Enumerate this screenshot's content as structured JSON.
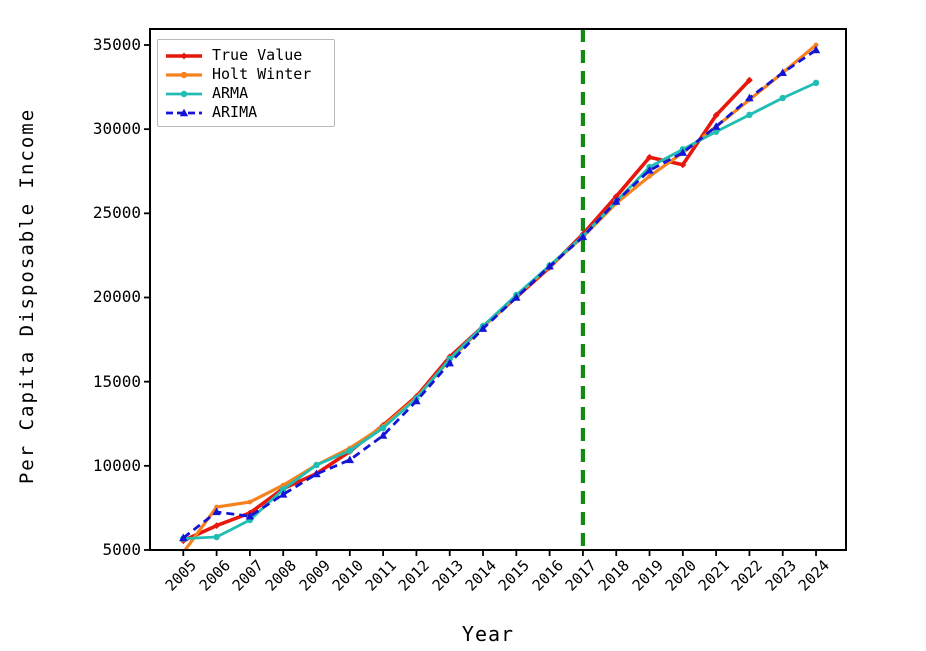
{
  "figure": {
    "background": "#ffffff",
    "axes_color": "#000000"
  },
  "chart_data": {
    "type": "line",
    "title": "",
    "xlabel": "Year",
    "ylabel": "Per Capita Disposable Income",
    "x": [
      2005,
      2006,
      2007,
      2008,
      2009,
      2010,
      2011,
      2012,
      2013,
      2014,
      2015,
      2016,
      2017,
      2018,
      2019,
      2020,
      2021,
      2022,
      2023,
      2024
    ],
    "xlim": [
      2004.0,
      2024.9
    ],
    "ylim": [
      5000,
      35950
    ],
    "yticks": [
      5000,
      10000,
      15000,
      20000,
      25000,
      30000,
      35000
    ],
    "grid": false,
    "legend_position": "upper-left",
    "series": [
      {
        "name": "True Value",
        "color": "#e8170d",
        "style": "solid",
        "marker": "diamond",
        "width": 3.6,
        "values": [
          5550,
          6450,
          7200,
          8650,
          9540,
          10850,
          12400,
          14120,
          16470,
          18280,
          20025,
          21790,
          23760,
          26000,
          28330,
          27880,
          30830,
          32910,
          null,
          null
        ]
      },
      {
        "name": "Holt Winter",
        "color": "#f5821f",
        "style": "solid",
        "marker": "circle-small",
        "width": 3.2,
        "values": [
          4850,
          7550,
          7850,
          8850,
          10050,
          11050,
          12350,
          14050,
          16300,
          18250,
          20100,
          21850,
          23600,
          25600,
          27200,
          28600,
          30150,
          31750,
          33350,
          35000
        ]
      },
      {
        "name": "ARMA",
        "color": "#1fbdb2",
        "style": "solid",
        "marker": "circle",
        "width": 2.8,
        "values": [
          5680,
          5770,
          6780,
          8600,
          10050,
          10900,
          12250,
          14000,
          16350,
          18300,
          20150,
          21900,
          23650,
          25700,
          27750,
          28800,
          29850,
          30850,
          31850,
          32750
        ]
      },
      {
        "name": "ARIMA",
        "color": "#1414d6",
        "style": "dashed",
        "marker": "triangle-up",
        "width": 2.8,
        "values": [
          5720,
          7260,
          7000,
          8300,
          9515,
          10350,
          11800,
          13850,
          16100,
          18150,
          20000,
          21850,
          23600,
          25700,
          27550,
          28600,
          30150,
          31850,
          33350,
          34700
        ]
      }
    ],
    "vline": {
      "x": 2017,
      "color": "#148a14",
      "style": "dashed",
      "width": 4.2
    }
  }
}
